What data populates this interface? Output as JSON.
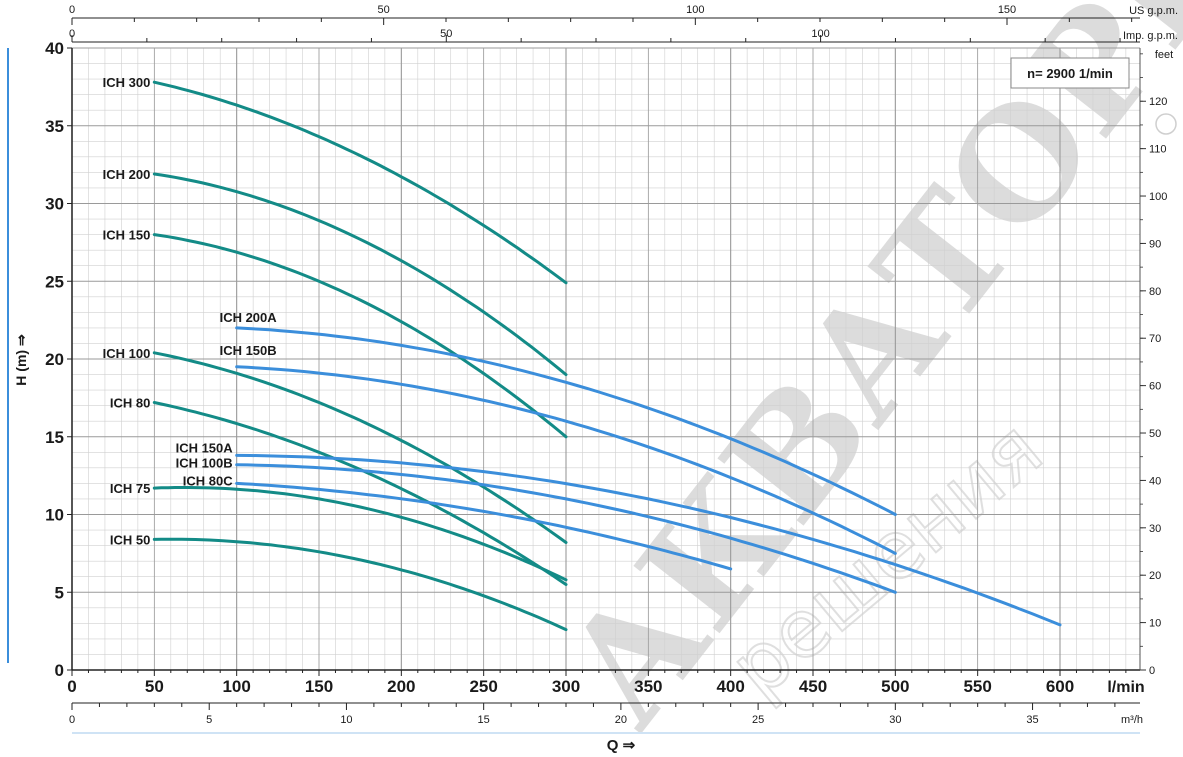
{
  "chart_data": {
    "type": "line",
    "speed_label": "n= 2900  1/min",
    "y_axis": {
      "label": "H (m)",
      "arrow": "⇒",
      "range": [
        0,
        40
      ],
      "ticks": [
        "0",
        "5",
        "10",
        "15",
        "20",
        "25",
        "30",
        "35",
        "40"
      ]
    },
    "y_axis_right": {
      "unit": "feet",
      "ticks": [
        "0",
        "10",
        "20",
        "30",
        "40",
        "50",
        "60",
        "70",
        "80",
        "90",
        "100",
        "110",
        "120"
      ]
    },
    "x_axis": {
      "unit": "l/min",
      "range": [
        0,
        650
      ],
      "ticks": [
        "0",
        "50",
        "100",
        "150",
        "200",
        "250",
        "300",
        "350",
        "400",
        "450",
        "500",
        "550",
        "600"
      ]
    },
    "x_axis_m3h": {
      "unit": "m³/h",
      "ticks": [
        "0",
        "5",
        "10",
        "15",
        "20",
        "25",
        "30",
        "35"
      ]
    },
    "x_axis_us": {
      "unit": "US g.p.m.",
      "ticks": [
        "0",
        "50",
        "100",
        "150"
      ]
    },
    "x_axis_imp": {
      "unit": "Imp. g.p.m.",
      "ticks": [
        "0",
        "50",
        "100"
      ]
    },
    "x_label": {
      "text": "Q",
      "arrow": "⇒"
    },
    "grid": true,
    "series": [
      {
        "name": "ICH 300",
        "color": "#138b87",
        "x": [
          50,
          150,
          300
        ],
        "y": [
          37.8,
          34.3,
          24.9
        ]
      },
      {
        "name": "ICH 200",
        "color": "#138b87",
        "x": [
          50,
          150,
          300
        ],
        "y": [
          31.9,
          28.9,
          19.0
        ]
      },
      {
        "name": "ICH 150",
        "color": "#138b87",
        "x": [
          50,
          150,
          300
        ],
        "y": [
          28.0,
          25.0,
          15.0
        ]
      },
      {
        "name": "ICH 100",
        "color": "#138b87",
        "x": [
          50,
          150,
          300
        ],
        "y": [
          20.4,
          17.2,
          8.2
        ]
      },
      {
        "name": "ICH 80",
        "color": "#138b87",
        "x": [
          50,
          150,
          300
        ],
        "y": [
          17.2,
          14.0,
          5.5
        ]
      },
      {
        "name": "ICH 75",
        "color": "#138b87",
        "x": [
          50,
          150,
          300
        ],
        "y": [
          11.7,
          11.0,
          5.8
        ]
      },
      {
        "name": "ICH 50",
        "color": "#138b87",
        "x": [
          50,
          150,
          300
        ],
        "y": [
          8.4,
          7.6,
          2.6
        ]
      },
      {
        "name": "ICH 200A",
        "color": "#3b8edb",
        "x": [
          100,
          300,
          500
        ],
        "y": [
          22.0,
          18.5,
          10.0
        ]
      },
      {
        "name": "ICH 150B",
        "color": "#3b8edb",
        "x": [
          100,
          300,
          500
        ],
        "y": [
          19.5,
          16.0,
          7.5
        ]
      },
      {
        "name": "ICH 150A",
        "color": "#3b8edb",
        "x": [
          100,
          350,
          600
        ],
        "y": [
          13.8,
          11.0,
          2.9
        ]
      },
      {
        "name": "ICH 100B",
        "color": "#3b8edb",
        "x": [
          100,
          300,
          500
        ],
        "y": [
          13.2,
          11.0,
          5.0
        ]
      },
      {
        "name": "ICH 80C",
        "color": "#3b8edb",
        "x": [
          100,
          250,
          400
        ],
        "y": [
          12.0,
          10.2,
          6.5
        ]
      }
    ]
  },
  "watermark": {
    "main": "АКВАТОРИЯ",
    "sub": "решения"
  }
}
